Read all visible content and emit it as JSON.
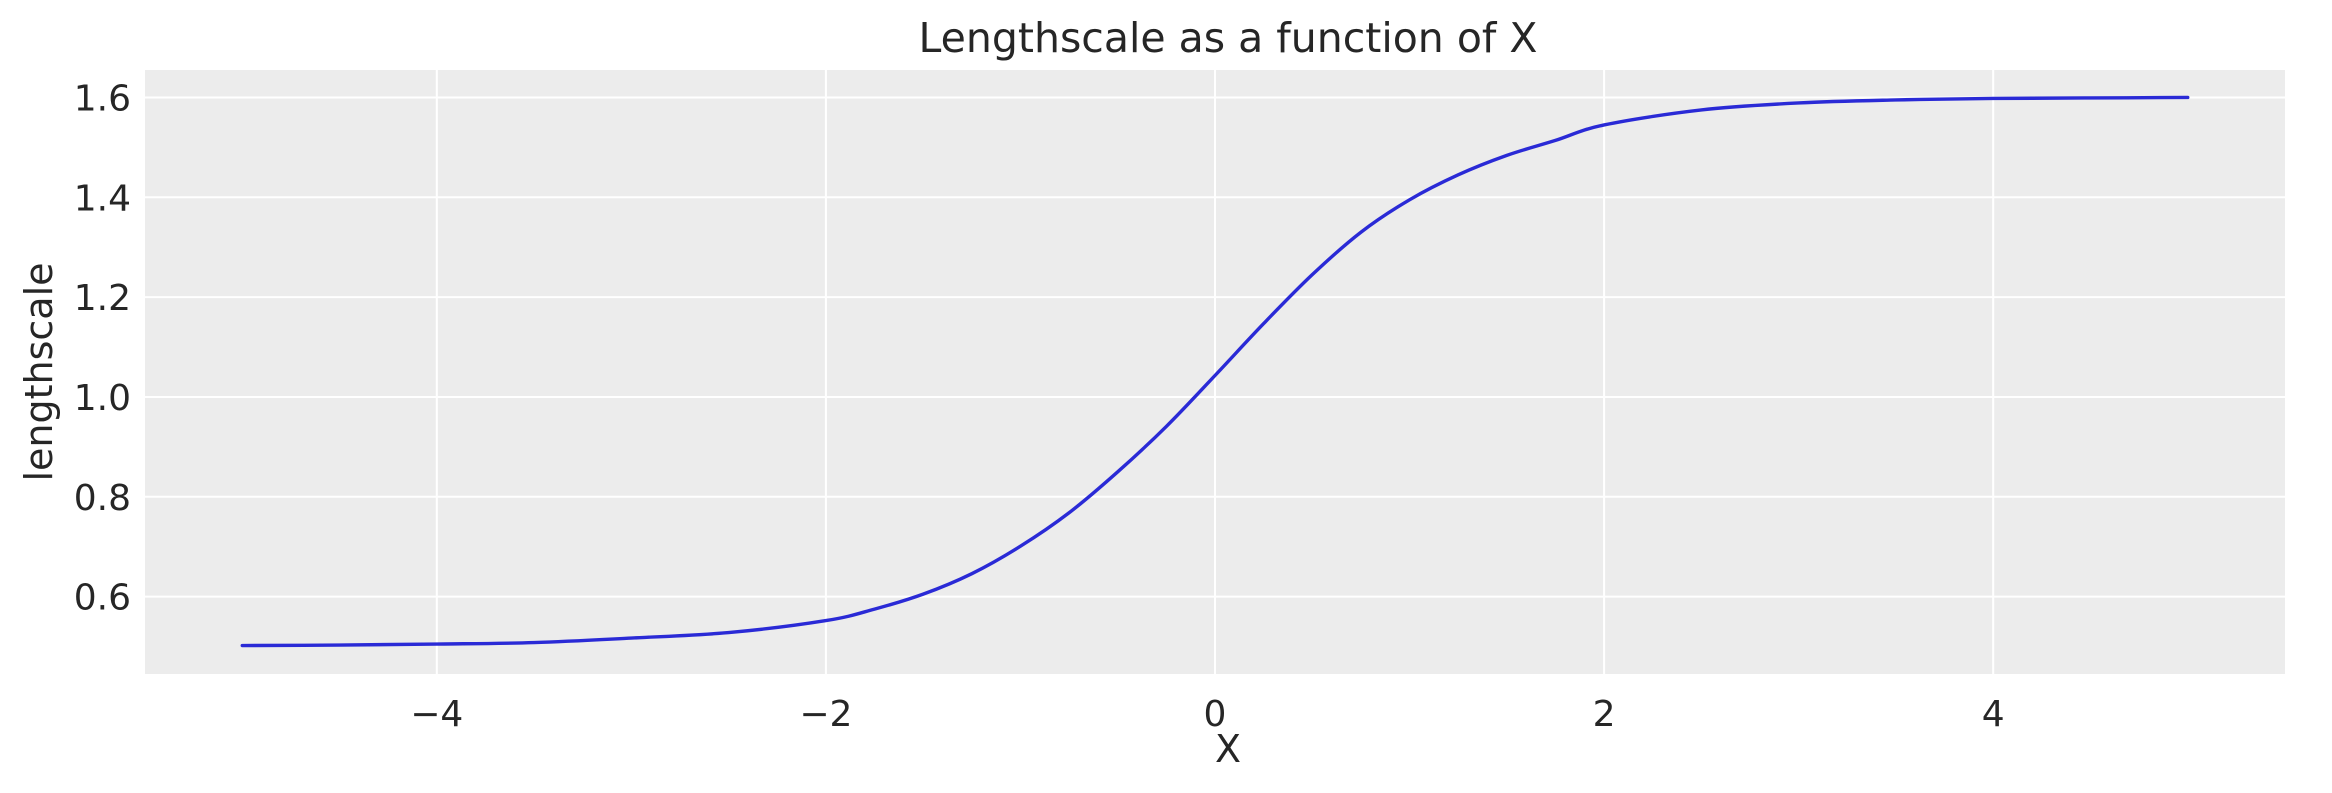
{
  "chart_data": {
    "type": "line",
    "title": "Lengthscale as a function of X",
    "xlabel": "X",
    "ylabel": "lengthscale",
    "xlim": [
      -5.5,
      5.5
    ],
    "ylim": [
      0.445,
      1.655
    ],
    "xticks": [
      -4,
      -2,
      0,
      2,
      4
    ],
    "xtick_labels": [
      "−4",
      "−2",
      "0",
      "2",
      "4"
    ],
    "yticks": [
      0.6,
      0.8,
      1.0,
      1.2,
      1.4,
      1.6
    ],
    "ytick_labels": [
      "0.6",
      "0.8",
      "1.0",
      "1.2",
      "1.4",
      "1.6"
    ],
    "grid": true,
    "background_color": "#ececec",
    "series": [
      {
        "color": "#2a2ad6",
        "x": [
          -5.0,
          -4.5,
          -4.0,
          -3.5,
          -3.0,
          -2.5,
          -2.0,
          -1.75,
          -1.5,
          -1.25,
          -1.0,
          -0.75,
          -0.5,
          -0.25,
          0.0,
          0.25,
          0.5,
          0.75,
          1.0,
          1.25,
          1.5,
          1.75,
          2.0,
          2.5,
          3.0,
          3.5,
          4.0,
          4.5,
          5.0
        ],
        "y": [
          0.502,
          0.503,
          0.505,
          0.508,
          0.517,
          0.528,
          0.552,
          0.575,
          0.605,
          0.646,
          0.701,
          0.768,
          0.85,
          0.941,
          1.043,
          1.147,
          1.245,
          1.33,
          1.395,
          1.445,
          1.484,
          1.514,
          1.545,
          1.575,
          1.589,
          1.595,
          1.598,
          1.599,
          1.6
        ]
      }
    ]
  }
}
